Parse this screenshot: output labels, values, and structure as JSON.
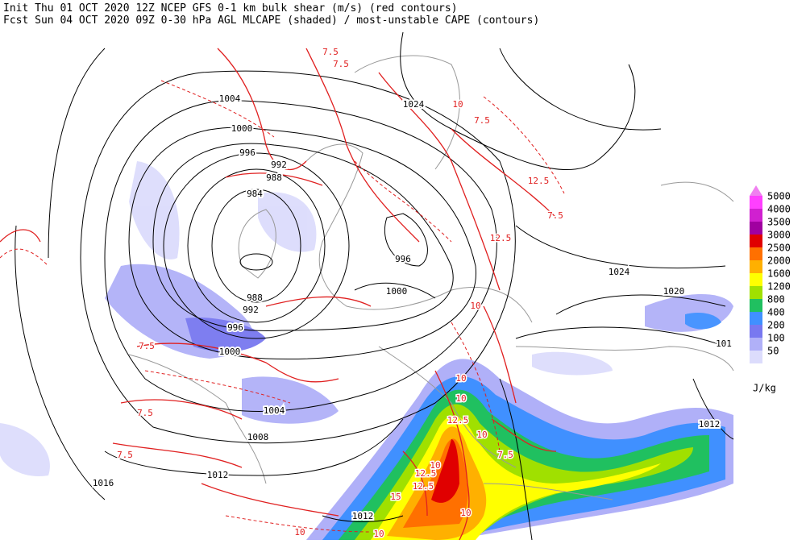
{
  "header": {
    "line1": "Init  Thu 01 OCT 2020 12Z  NCEP GFS 0-1 km bulk shear (m/s) (red contours)",
    "line2": "Fcst Sun 04 OCT 2020 09Z  0-30 hPa AGL MLCAPE (shaded) / most-unstable CAPE (contours)"
  },
  "legend": {
    "unit": "J/kg",
    "levels": [
      {
        "value": 5000,
        "color": "#ff40ff"
      },
      {
        "value": 4000,
        "color": "#d020d0"
      },
      {
        "value": 3500,
        "color": "#a000a0"
      },
      {
        "value": 3000,
        "color": "#e00000"
      },
      {
        "value": 2500,
        "color": "#ff7000"
      },
      {
        "value": 2000,
        "color": "#ffb000"
      },
      {
        "value": 1600,
        "color": "#ffff00"
      },
      {
        "value": 1200,
        "color": "#a0e000"
      },
      {
        "value": 800,
        "color": "#20c060"
      },
      {
        "value": 400,
        "color": "#4090ff"
      },
      {
        "value": 200,
        "color": "#7878f0"
      },
      {
        "value": 100,
        "color": "#b0b0f8"
      },
      {
        "value": 50,
        "color": "#dcdcfc"
      }
    ]
  },
  "isobar_labels": [
    1004,
    1000,
    996,
    992,
    988,
    984,
    988,
    992,
    996,
    1000,
    1004,
    1008,
    1012,
    1016,
    1024,
    1024,
    1020,
    1012,
    1012,
    1000,
    996,
    101
  ],
  "shear_labels": [
    7.5,
    7.5,
    10,
    7.5,
    12.5,
    7.5,
    12.5,
    10,
    7.5,
    7.5,
    7.5,
    10,
    10,
    12.5,
    12.5,
    10,
    10,
    7.5,
    10,
    10,
    10,
    12.5,
    15
  ]
}
